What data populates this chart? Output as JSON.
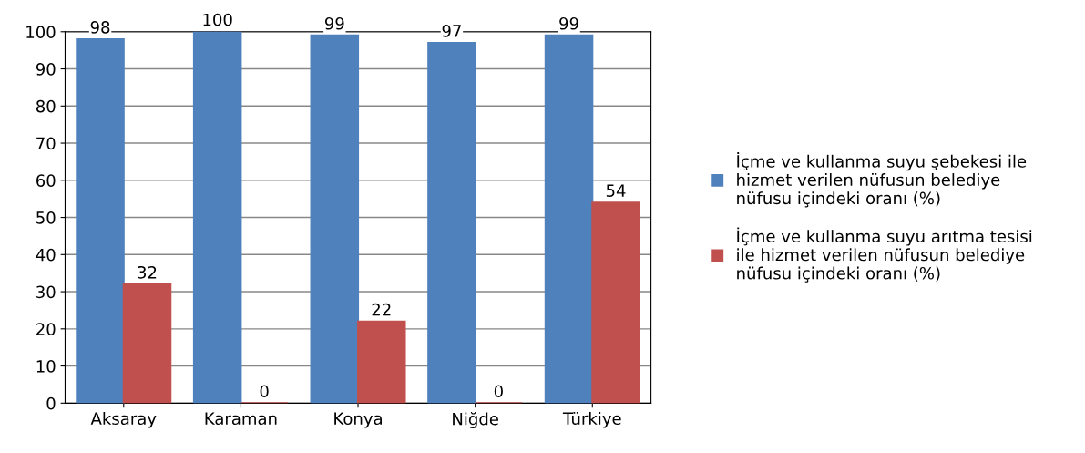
{
  "chart_data": {
    "type": "bar",
    "categories": [
      "Aksaray",
      "Karaman",
      "Konya",
      "Niğde",
      "Türkiye"
    ],
    "series": [
      {
        "name": "İçme ve kullanma suyu şebekesi ile\nhizmet verilen nüfusun belediye\nnüfusu içindeki oranı (%)",
        "color": "#4f81bd",
        "values": [
          98,
          100,
          99,
          97,
          99
        ]
      },
      {
        "name": "İçme ve kullanma suyu arıtma tesisi\nile hizmet verilen nüfusun belediye\nnüfusu içindeki oranı (%)",
        "color": "#c0504d",
        "values": [
          32,
          0,
          22,
          0,
          54
        ]
      }
    ],
    "ylim": [
      0,
      100
    ],
    "yticks": [
      0,
      10,
      20,
      30,
      40,
      50,
      60,
      70,
      80,
      90,
      100
    ],
    "grid": "y",
    "legend": "right",
    "data_labels": true
  }
}
